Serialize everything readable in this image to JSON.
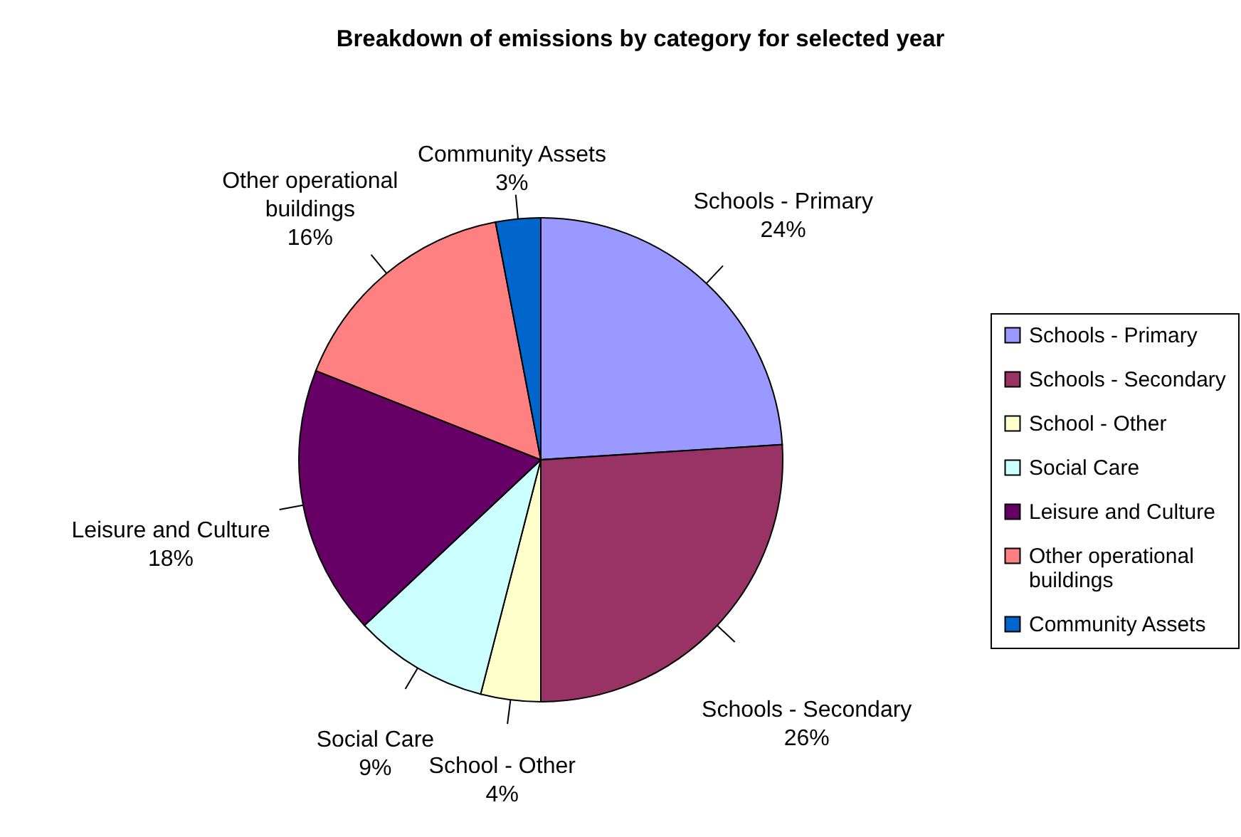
{
  "chart_data": {
    "type": "pie",
    "title": "Breakdown of emissions by category for selected year",
    "categories": [
      "Schools - Primary",
      "Schools - Secondary",
      "School - Other",
      "Social Care",
      "Leisure and Culture",
      "Other operational buildings",
      "Community Assets"
    ],
    "values": [
      24,
      26,
      4,
      9,
      18,
      16,
      3
    ],
    "colors": [
      "#9999ff",
      "#993366",
      "#ffffcc",
      "#ccffff",
      "#660066",
      "#ff8080",
      "#0066cc"
    ],
    "value_labels": [
      "24%",
      "26%",
      "4%",
      "9%",
      "18%",
      "16%",
      "3%"
    ],
    "legend": "right"
  }
}
